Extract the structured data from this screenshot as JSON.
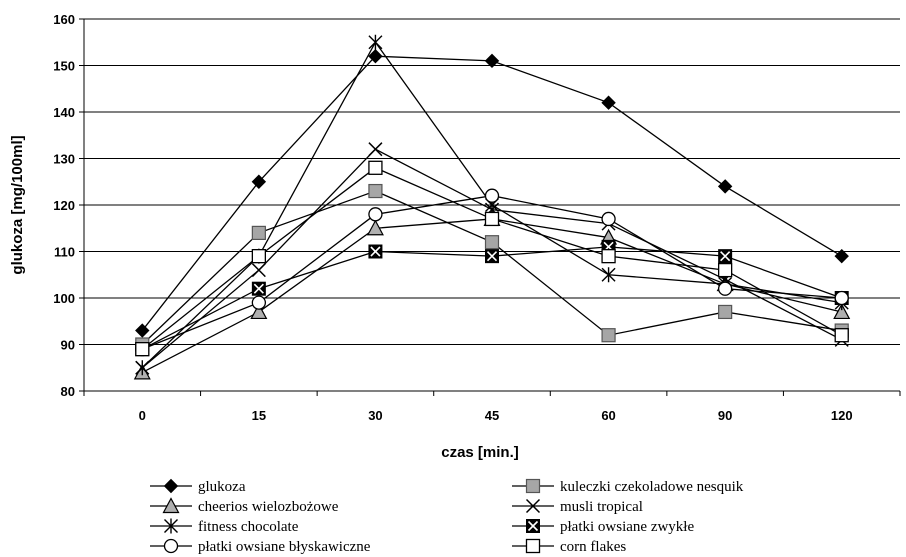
{
  "chart_data": {
    "type": "line",
    "title": "",
    "xlabel": "czas [min.]",
    "ylabel": "glukoza [mg/100ml]",
    "categories": [
      "0",
      "15",
      "30",
      "45",
      "60",
      "90",
      "120"
    ],
    "ylim": [
      80,
      160
    ],
    "yticks": [
      "80",
      "90",
      "100",
      "110",
      "120",
      "130",
      "140",
      "150",
      "160"
    ],
    "grid": "horizontal",
    "legend": "bottom",
    "series": [
      {
        "name": "glukoza",
        "marker": "diamond-filled",
        "values": [
          93,
          125,
          152,
          151,
          142,
          124,
          109
        ]
      },
      {
        "name": "kuleczki czekoladowe nesquik",
        "marker": "square-gray",
        "values": [
          90,
          114,
          123,
          112,
          92,
          97,
          93
        ]
      },
      {
        "name": "cheerios wielozbożowe",
        "marker": "triangle-gray",
        "values": [
          84,
          97,
          115,
          117,
          113,
          103,
          97
        ]
      },
      {
        "name": "musli tropical",
        "marker": "x",
        "values": [
          85,
          106,
          132,
          119,
          116,
          104,
          91
        ]
      },
      {
        "name": "fitness chocolate",
        "marker": "asterisk",
        "values": [
          85,
          109,
          155,
          120,
          105,
          103,
          99
        ]
      },
      {
        "name": "płatki owsiane zwykłe",
        "marker": "square-x",
        "values": [
          89,
          102,
          110,
          109,
          111,
          109,
          100
        ]
      },
      {
        "name": "płatki owsiane błyskawiczne",
        "marker": "circle-open",
        "values": [
          89,
          99,
          118,
          122,
          117,
          102,
          100
        ]
      },
      {
        "name": "corn flakes",
        "marker": "square-open",
        "values": [
          89,
          109,
          128,
          117,
          109,
          106,
          92
        ]
      }
    ]
  }
}
